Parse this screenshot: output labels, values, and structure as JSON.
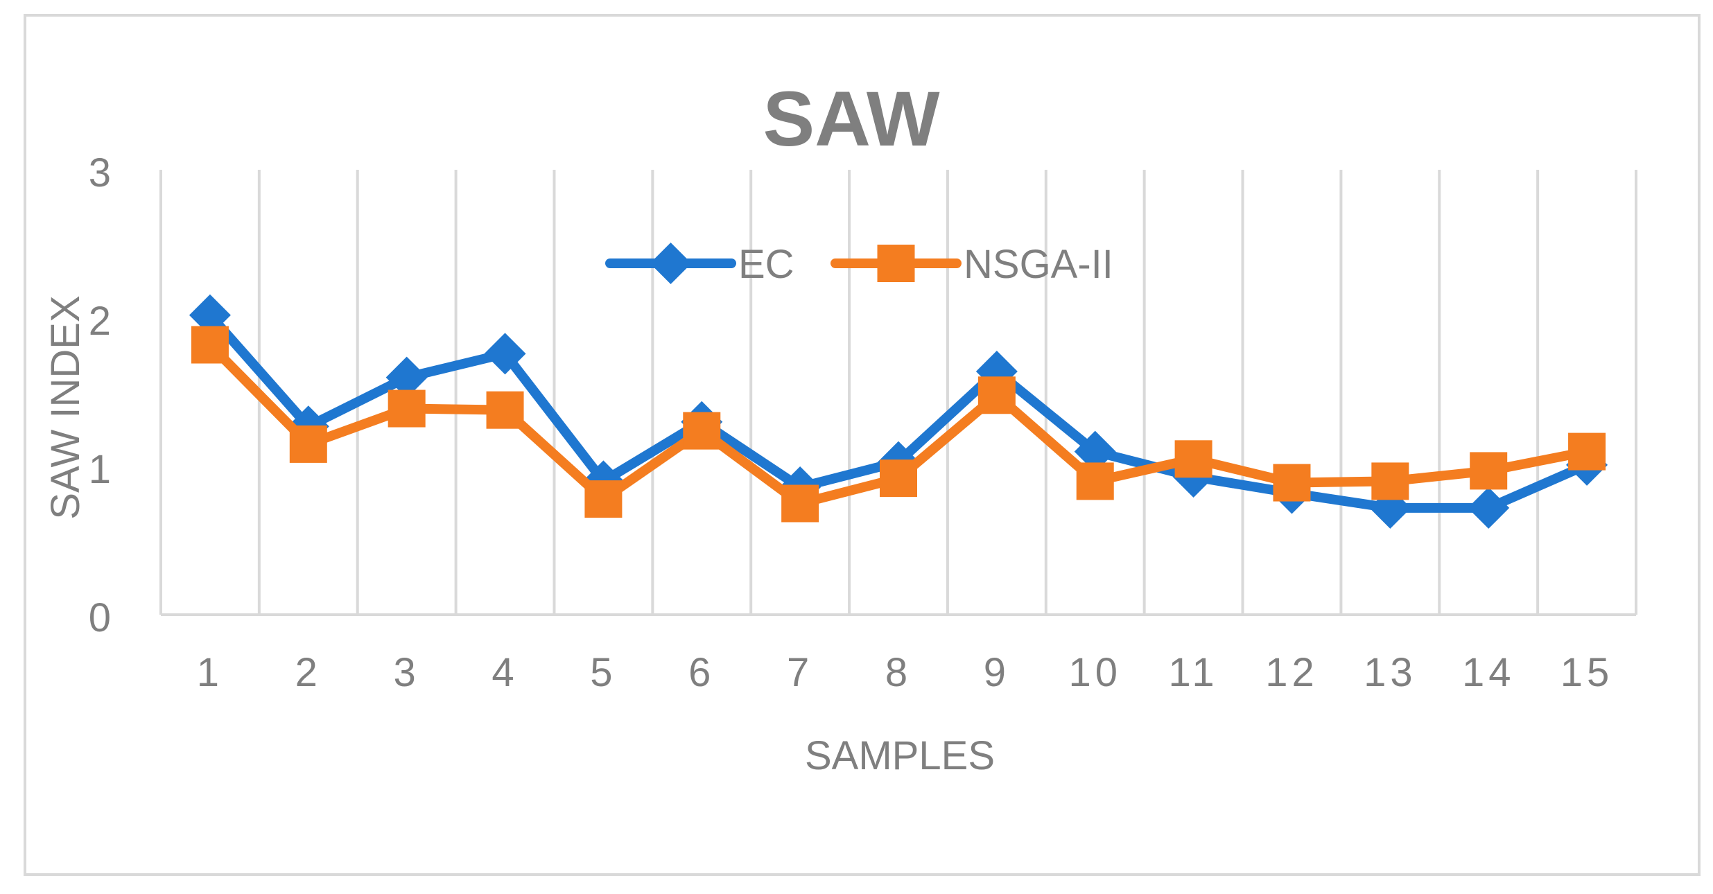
{
  "chart_data": {
    "type": "line",
    "title": "SAW",
    "xlabel": "SAMPLES",
    "ylabel": "SAW INDEX",
    "ylim": [
      0,
      3
    ],
    "yticks": [
      "0",
      "1",
      "2",
      "3"
    ],
    "categories": [
      "1",
      "2",
      "3",
      "4",
      "5",
      "6",
      "7",
      "8",
      "9",
      "10",
      "11",
      "12",
      "13",
      "14",
      "15"
    ],
    "grid": "vertical",
    "legend_position": "top-center",
    "series": [
      {
        "name": "EC",
        "color": "#1f77d0",
        "marker": "diamond",
        "values": [
          2.02,
          1.27,
          1.6,
          1.76,
          0.9,
          1.3,
          0.86,
          1.03,
          1.64,
          1.1,
          0.93,
          0.82,
          0.72,
          0.72,
          1.01
        ]
      },
      {
        "name": "NSGA-II",
        "color": "#f47d20",
        "marker": "square",
        "values": [
          1.82,
          1.15,
          1.39,
          1.38,
          0.78,
          1.24,
          0.75,
          0.92,
          1.48,
          0.9,
          1.05,
          0.89,
          0.9,
          0.97,
          1.1
        ]
      }
    ]
  }
}
